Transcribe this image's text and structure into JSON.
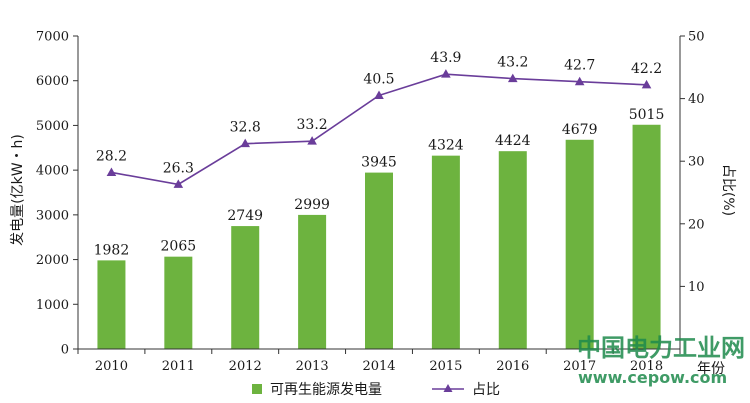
{
  "chart_data": {
    "type": "bar",
    "categories": [
      "2010",
      "2011",
      "2012",
      "2013",
      "2014",
      "2015",
      "2016",
      "2017",
      "2018"
    ],
    "series": [
      {
        "name": "可再生能源发电量",
        "type": "bar",
        "axis": "left",
        "values": [
          1982,
          2065,
          2749,
          2999,
          3945,
          4324,
          4424,
          4679,
          5015
        ],
        "labels": [
          "1982",
          "2065",
          "2749",
          "2999",
          "3945",
          "4324",
          "4424",
          "4679",
          "5015"
        ],
        "color": "#6db33f"
      },
      {
        "name": "占比",
        "type": "line",
        "axis": "right",
        "marker": "triangle",
        "values": [
          28.2,
          26.3,
          32.8,
          33.2,
          40.5,
          43.9,
          43.2,
          42.7,
          42.2
        ],
        "labels": [
          "28.2",
          "26.3",
          "32.8",
          "33.2",
          "40.5",
          "43.9",
          "43.2",
          "42.7",
          "42.2"
        ],
        "color": "#6a3d9a"
      }
    ],
    "ylabel_left": "发电量(亿kW・h)",
    "ylabel_right": "占比(%)",
    "xlabel": "年份",
    "ylim_left": [
      0,
      7000
    ],
    "ylim_right": [
      0,
      50
    ],
    "yticks_left": [
      "0",
      "1000",
      "2000",
      "3000",
      "4000",
      "5000",
      "6000",
      "7000"
    ],
    "yticks_right": [
      "10",
      "20",
      "30",
      "40",
      "50"
    ],
    "grid": false,
    "legend_position": "bottom"
  },
  "watermark": {
    "line1": "中国电力工业网",
    "line2": "www.cepow.com"
  }
}
